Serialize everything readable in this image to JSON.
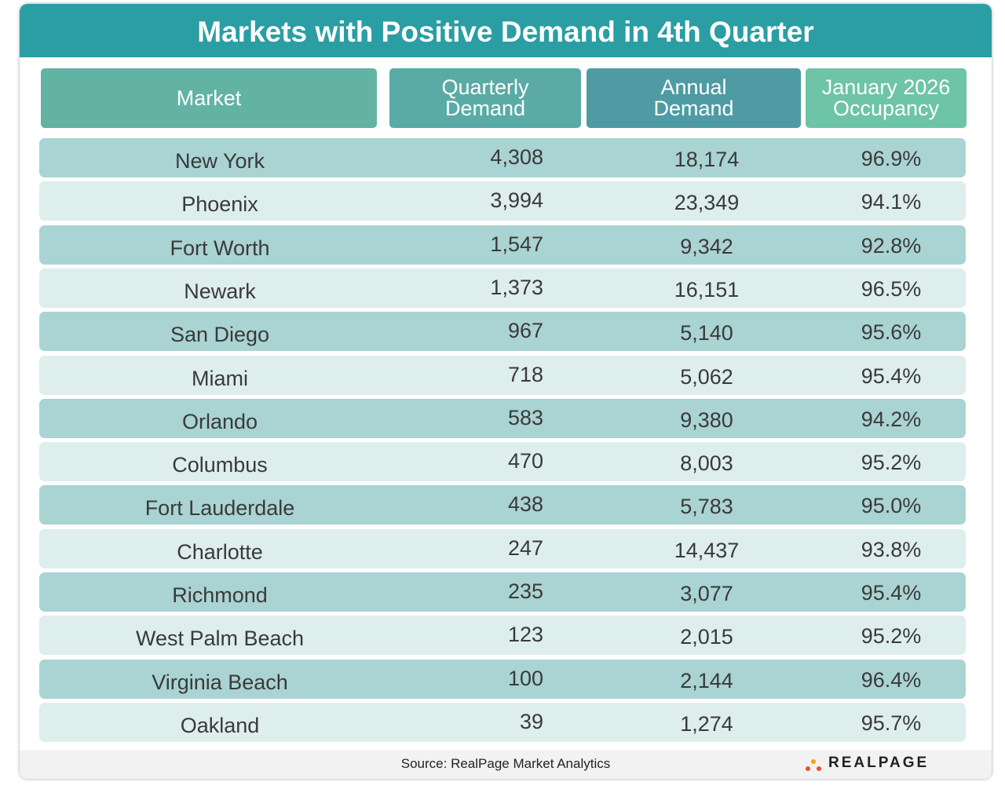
{
  "header": {
    "title": "Markets with Positive Demand in 4th Quarter"
  },
  "table": {
    "columns": [
      [
        "Market"
      ],
      [
        "Quarterly",
        "Demand"
      ],
      [
        "Annual",
        "Demand"
      ],
      [
        "January 2026",
        "Occupancy"
      ]
    ],
    "rows": [
      [
        "New York",
        "4,308",
        "18,174",
        "96.9%"
      ],
      [
        "Phoenix",
        "3,994",
        "23,349",
        "94.1%"
      ],
      [
        "Fort Worth",
        "1,547",
        "9,342",
        "92.8%"
      ],
      [
        "Newark",
        "1,373",
        "16,151",
        "96.5%"
      ],
      [
        "San Diego",
        "967",
        "5,140",
        "95.6%"
      ],
      [
        "Miami",
        "718",
        "5,062",
        "95.4%"
      ],
      [
        "Orlando",
        "583",
        "9,380",
        "94.2%"
      ],
      [
        "Columbus",
        "470",
        "8,003",
        "95.2%"
      ],
      [
        "Fort Lauderdale",
        "438",
        "5,783",
        "95.0%"
      ],
      [
        "Charlotte",
        "247",
        "14,437",
        "93.8%"
      ],
      [
        "Richmond",
        "235",
        "3,077",
        "95.4%"
      ],
      [
        "West Palm Beach",
        "123",
        "2,015",
        "95.2%"
      ],
      [
        "Virginia Beach",
        "100",
        "2,144",
        "96.4%"
      ],
      [
        "Oakland",
        "39",
        "1,274",
        "95.7%"
      ]
    ]
  },
  "footer": {
    "source": "Source:  RealPage Market Analytics",
    "logo": "REALPAGE"
  }
}
